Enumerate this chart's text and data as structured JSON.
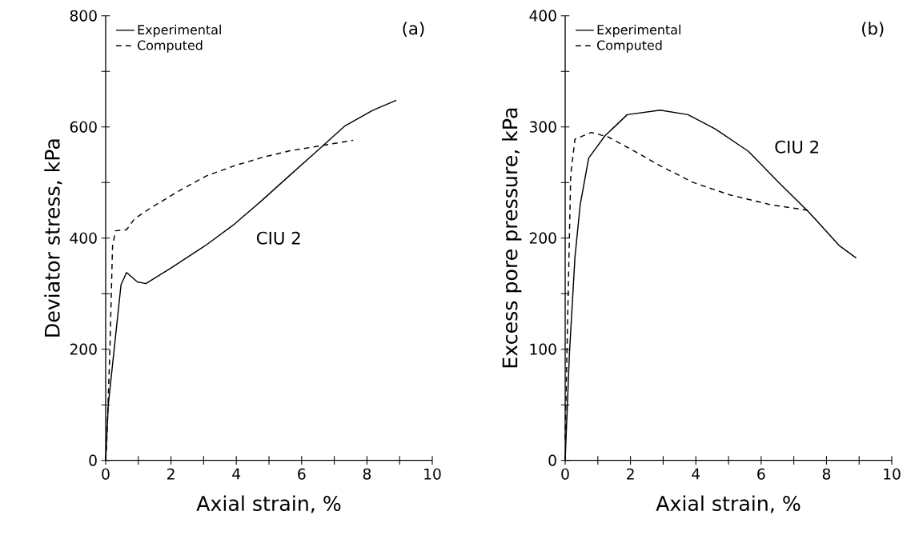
{
  "chart_data": [
    {
      "type": "line",
      "xlabel": "Axial strain, %",
      "ylabel": "Deviator stress, kPa",
      "annotations": [
        "(a)",
        "CIU 2"
      ],
      "xlim": [
        0,
        10
      ],
      "ylim": [
        0,
        800
      ],
      "xticks": [
        0,
        {
          "value": 1,
          "label": null
        },
        2,
        {
          "value": 3,
          "label": null
        },
        4,
        {
          "value": 5,
          "label": null
        },
        6,
        {
          "value": 7,
          "label": null
        },
        8,
        {
          "value": 9,
          "label": null
        },
        10
      ],
      "yticks": [
        0,
        {
          "value": 100,
          "label": null
        },
        200,
        {
          "value": 300,
          "label": null
        },
        400,
        {
          "value": 500,
          "label": null
        },
        600,
        {
          "value": 700,
          "label": null
        },
        800
      ],
      "legend": "top left",
      "series": [
        {
          "name": "Experimental",
          "color": "#000000",
          "line_style": "solid",
          "x": [
            0,
            0.08,
            0.47,
            0.64,
            0.97,
            1.23,
            2.0,
            3.09,
            3.94,
            4.79,
            5.64,
            6.48,
            7.33,
            8.18,
            8.9
          ],
          "values": [
            0,
            100,
            316,
            338,
            321,
            318,
            346,
            388,
            425,
            468,
            513,
            557,
            602,
            630,
            648
          ]
        },
        {
          "name": "Computed",
          "color": "#000000",
          "line_style": "dashed",
          "x": [
            0,
            0.03,
            0.13,
            0.21,
            0.3,
            0.64,
            0.89,
            1.4,
            2.25,
            3.09,
            3.94,
            4.79,
            5.64,
            6.48,
            7.58
          ],
          "values": [
            0,
            27,
            201,
            385,
            413,
            415,
            435,
            455,
            485,
            512,
            530,
            545,
            557,
            565,
            576
          ]
        }
      ]
    },
    {
      "type": "line",
      "xlabel": "Axial strain, %",
      "ylabel": "Excess pore pressure, kPa",
      "annotations": [
        "(b)",
        "CIU 2"
      ],
      "xlim": [
        0,
        10
      ],
      "ylim": [
        0,
        400
      ],
      "xticks": [
        0,
        {
          "value": 1,
          "label": null
        },
        2,
        {
          "value": 3,
          "label": null
        },
        4,
        {
          "value": 5,
          "label": null
        },
        6,
        {
          "value": 7,
          "label": null
        },
        8,
        {
          "value": 9,
          "label": null
        },
        10
      ],
      "yticks": [
        0,
        {
          "value": 50,
          "label": null
        },
        100,
        {
          "value": 150,
          "label": null
        },
        200,
        {
          "value": 250,
          "label": null
        },
        300,
        {
          "value": 350,
          "label": null
        },
        400
      ],
      "legend": "top left",
      "series": [
        {
          "name": "Experimental",
          "color": "#000000",
          "line_style": "solid",
          "x": [
            0,
            0.13,
            0.3,
            0.46,
            0.72,
            1.22,
            1.9,
            2.91,
            3.76,
            4.6,
            5.61,
            6.54,
            7.47,
            8.4,
            8.91
          ],
          "values": [
            0,
            96,
            183,
            230,
            272,
            292,
            311,
            315,
            311,
            298,
            278,
            250,
            223,
            193,
            182
          ]
        },
        {
          "name": "Computed",
          "color": "#000000",
          "line_style": "dashed",
          "x": [
            0,
            0.08,
            0.17,
            0.3,
            0.8,
            1.31,
            2.07,
            2.91,
            3.92,
            5.02,
            6.29,
            7.43
          ],
          "values": [
            19,
            133,
            257,
            289,
            295,
            291,
            279,
            265,
            250,
            239,
            230,
            225
          ]
        }
      ]
    }
  ]
}
